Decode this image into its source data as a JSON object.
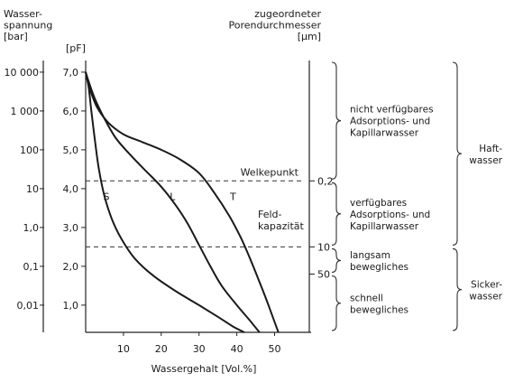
{
  "chart_data": {
    "type": "line",
    "left_axis_title": [
      "Wasser-",
      "spannung",
      "[bar]"
    ],
    "pf_axis_title": "[pF]",
    "right_axis_title": [
      "zugeordneter",
      "Porendurchmesser",
      "[μm]"
    ],
    "xlabel": "Wassergehalt [Vol.%]",
    "x_ticks": [
      "10",
      "20",
      "30",
      "40",
      "50"
    ],
    "x_tick_values": [
      10,
      20,
      30,
      40,
      50
    ],
    "xlim": [
      0,
      58
    ],
    "ylim": [
      0.3,
      7.3
    ],
    "pf_ticks": [
      "7,0",
      "6,0",
      "5,0",
      "4,0",
      "3,0",
      "2,0",
      "1,0"
    ],
    "pf_tick_values": [
      7.0,
      6.0,
      5.0,
      4.0,
      3.0,
      2.0,
      1.0
    ],
    "bar_ticks": [
      "10 000",
      "1 000",
      "100",
      "10",
      "1,0",
      "0,1",
      "0,01"
    ],
    "pore_ticks": [
      {
        "label": "0,2",
        "pf": 4.2
      },
      {
        "label": "10",
        "pf": 2.5
      },
      {
        "label": "50",
        "pf": 1.8
      }
    ],
    "series": [
      {
        "name": "S",
        "label_at": [
          5.5,
          3.8
        ],
        "points": [
          [
            0,
            7.0
          ],
          [
            0.8,
            6.6
          ],
          [
            1.5,
            6.0
          ],
          [
            2.5,
            5.2
          ],
          [
            3.5,
            4.5
          ],
          [
            5,
            3.8
          ],
          [
            7,
            3.2
          ],
          [
            9.5,
            2.7
          ],
          [
            13,
            2.2
          ],
          [
            18,
            1.75
          ],
          [
            24,
            1.35
          ],
          [
            30,
            1.0
          ],
          [
            35,
            0.7
          ],
          [
            39,
            0.45
          ],
          [
            42,
            0.3
          ]
        ]
      },
      {
        "name": "L",
        "label_at": [
          23,
          3.8
        ],
        "points": [
          [
            0,
            7.0
          ],
          [
            1,
            6.7
          ],
          [
            2.5,
            6.3
          ],
          [
            5,
            5.8
          ],
          [
            8,
            5.3
          ],
          [
            12,
            4.85
          ],
          [
            16,
            4.45
          ],
          [
            20,
            4.05
          ],
          [
            24,
            3.55
          ],
          [
            27,
            3.1
          ],
          [
            30,
            2.55
          ],
          [
            33,
            2.0
          ],
          [
            36,
            1.5
          ],
          [
            40,
            1.0
          ],
          [
            43.5,
            0.6
          ],
          [
            46,
            0.3
          ]
        ]
      },
      {
        "name": "T",
        "label_at": [
          39,
          3.8
        ],
        "points": [
          [
            0,
            7.0
          ],
          [
            1,
            6.6
          ],
          [
            3,
            6.1
          ],
          [
            6,
            5.7
          ],
          [
            10,
            5.4
          ],
          [
            15,
            5.2
          ],
          [
            20,
            5.0
          ],
          [
            25,
            4.75
          ],
          [
            30,
            4.4
          ],
          [
            34,
            3.9
          ],
          [
            38,
            3.3
          ],
          [
            41,
            2.75
          ],
          [
            43.5,
            2.2
          ],
          [
            46,
            1.6
          ],
          [
            48,
            1.1
          ],
          [
            49.5,
            0.7
          ],
          [
            51,
            0.3
          ]
        ]
      }
    ],
    "reference_lines": [
      {
        "name": "Welkepunkt",
        "pf": 4.2
      },
      {
        "name": "Feldkapazität",
        "pf": 2.5
      }
    ],
    "annotations": {
      "welkepunkt": "Welkepunkt",
      "feldkapazitaet": [
        "Feld-",
        "kapazität"
      ]
    },
    "zones": [
      {
        "lines": [
          "nicht verfügbares",
          "Adsorptions- und",
          "Kapillarwasser"
        ],
        "pf_from": 7.3,
        "pf_to": 4.2
      },
      {
        "lines": [
          "verfügbares",
          "Adsorptions- und",
          "Kapillarwasser"
        ],
        "pf_from": 4.2,
        "pf_to": 2.5
      },
      {
        "lines": [
          "langsam",
          "bewegliches"
        ],
        "pf_from": 2.5,
        "pf_to": 1.8
      },
      {
        "lines": [
          "schnell",
          "bewegliches"
        ],
        "pf_from": 1.8,
        "pf_to": 0.3
      }
    ],
    "groups": [
      {
        "lines": [
          "Haft-",
          "wasser"
        ],
        "pf_from": 7.3,
        "pf_to": 2.5
      },
      {
        "lines": [
          "Sicker-",
          "wasser"
        ],
        "pf_from": 2.5,
        "pf_to": 0.3
      }
    ]
  }
}
